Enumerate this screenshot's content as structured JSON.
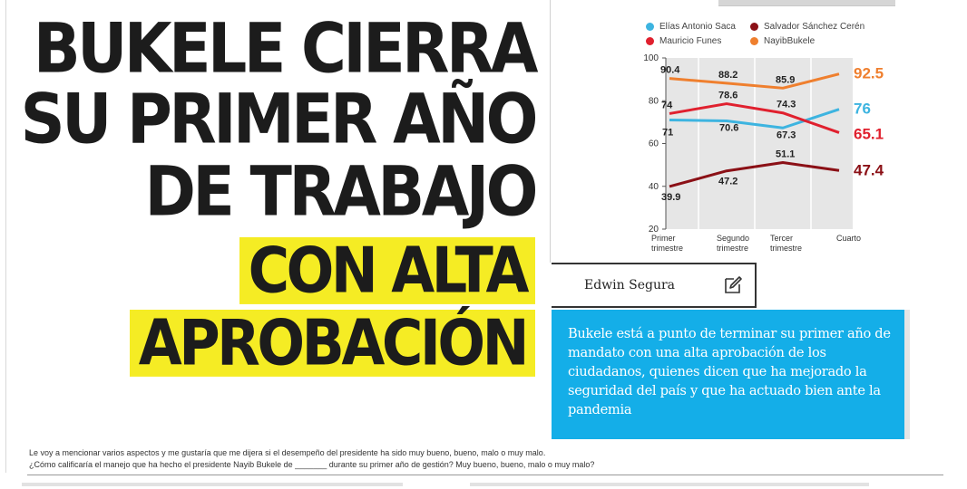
{
  "headline": {
    "line1": "BUKELE CIERRA",
    "line2": "SU PRIMER AÑO",
    "line3": "DE TRABAJO",
    "line4": "CON ALTA",
    "line5": "APROBACIÓN"
  },
  "author": {
    "name": "Edwin Segura",
    "icon": "pencil-edit-icon"
  },
  "summary": "Bukele está a punto de terminar su primer año de mandato con una alta aprobación de los ciudadanos, quienes dicen que ha mejorado la seguridad del país y que ha actuado bien ante la pandemia",
  "survey": {
    "line1": "Le voy a mencionar varios aspectos y me gustaría que me dijera si el desempeño del presidente ha sido muy bueno, bueno, malo o muy malo.",
    "line2": "¿Cómo calificaría el manejo que ha hecho el presidente  Nayib Bukele de _______ durante su primer año de gestión? Muy bueno, bueno, malo o muy malo?"
  },
  "colors": {
    "highlight": "#f5ec24",
    "blue_box": "#14aee8",
    "saca": "#3db4e0",
    "sanchez": "#8b1016",
    "funes": "#e0202e",
    "bukele": "#ef7f2e"
  },
  "chart_data": {
    "type": "line",
    "categories": [
      "Primer trimestre",
      "Segundo trimestre",
      "Tercer trimestre",
      "Cuarto"
    ],
    "ylim": [
      20,
      100
    ],
    "yticks": [
      20,
      40,
      60,
      80,
      100
    ],
    "legend_position": "top",
    "grid": true,
    "series": [
      {
        "name": "Elías Antonio Saca",
        "color": "#3db4e0",
        "values": [
          71,
          70.6,
          67.3,
          76
        ],
        "labels": [
          "71",
          "70.6",
          "67.3",
          "76"
        ]
      },
      {
        "name": "Salvador Sánchez Cerén",
        "color": "#8b1016",
        "values": [
          39.9,
          47.2,
          51.1,
          47.4
        ],
        "labels": [
          "39.9",
          "47.2",
          "51.1",
          "47.4"
        ]
      },
      {
        "name": "Mauricio Funes",
        "color": "#e0202e",
        "values": [
          74,
          78.6,
          74.3,
          65.1
        ],
        "labels": [
          "74",
          "78.6",
          "74.3",
          "65.1"
        ]
      },
      {
        "name": "NayibBukele",
        "color": "#ef7f2e",
        "values": [
          90.4,
          88.2,
          85.9,
          92.5
        ],
        "labels": [
          "90.4",
          "88.2",
          "85.9",
          "92.5"
        ]
      }
    ]
  }
}
